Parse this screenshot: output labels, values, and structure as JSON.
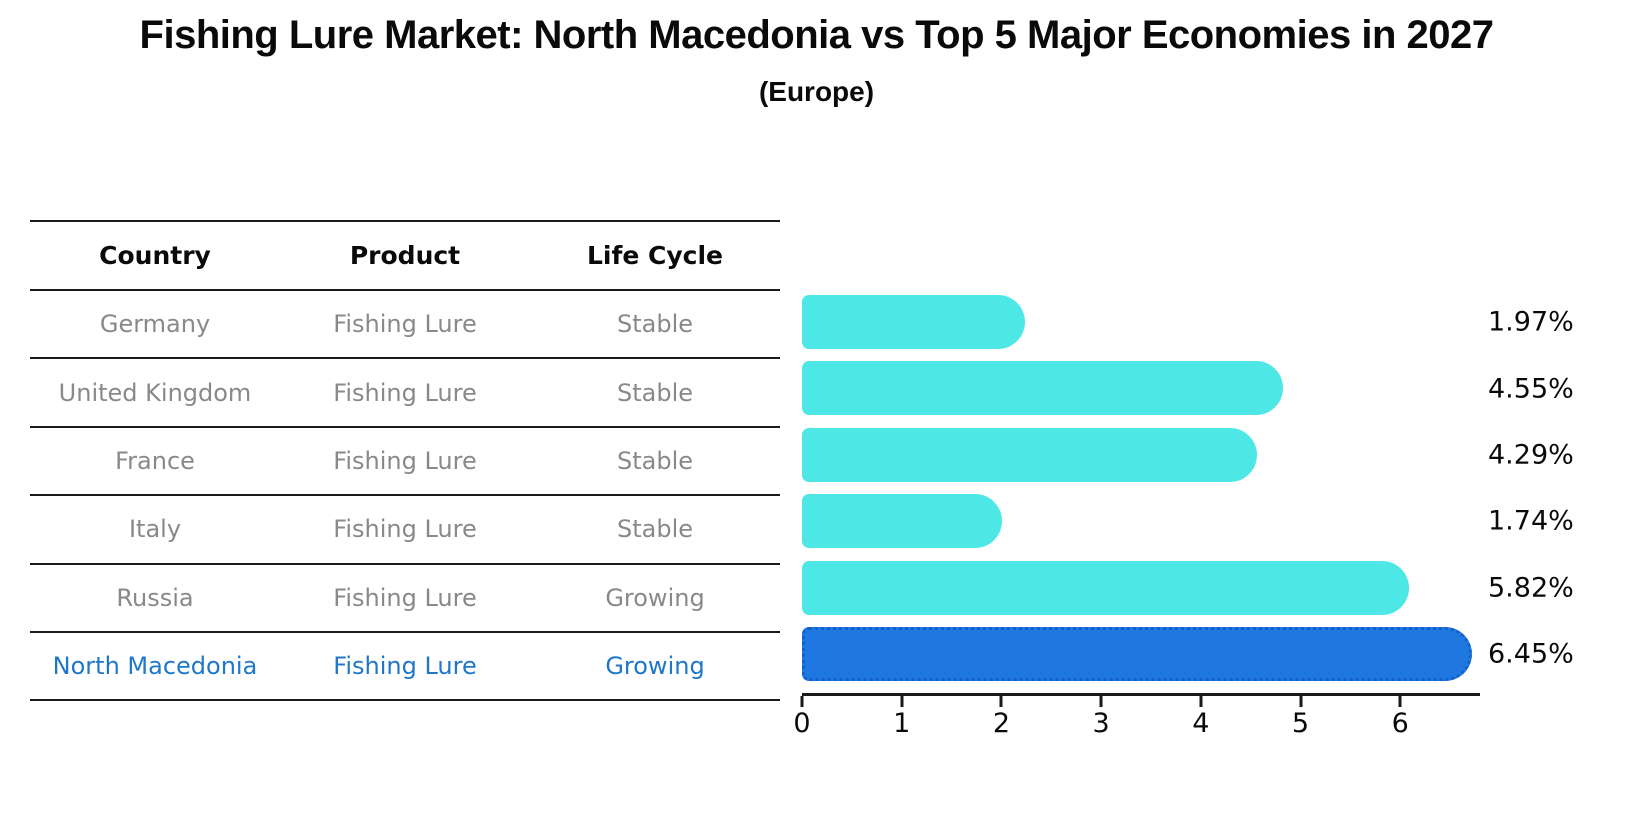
{
  "title": "Fishing Lure Market: North Macedonia vs Top 5 Major Economies in 2027",
  "subtitle": "(Europe)",
  "table": {
    "headers": [
      "Country",
      "Product",
      "Life Cycle"
    ],
    "rows": [
      {
        "country": "Germany",
        "product": "Fishing Lure",
        "life_cycle": "Stable",
        "highlighted": false
      },
      {
        "country": "United Kingdom",
        "product": "Fishing Lure",
        "life_cycle": "Stable",
        "highlighted": false
      },
      {
        "country": "France",
        "product": "Fishing Lure",
        "life_cycle": "Stable",
        "highlighted": false
      },
      {
        "country": "Italy",
        "product": "Fishing Lure",
        "life_cycle": "Stable",
        "highlighted": false
      },
      {
        "country": "Russia",
        "product": "Fishing Lure",
        "life_cycle": "Growing",
        "highlighted": false
      },
      {
        "country": "North Macedonia",
        "product": "Fishing Lure",
        "life_cycle": "Growing",
        "highlighted": true
      }
    ]
  },
  "chart_data": {
    "type": "bar",
    "orientation": "horizontal",
    "title": "Fishing Lure Market: North Macedonia vs Top 5 Major Economies in 2027 (Europe)",
    "categories": [
      "Germany",
      "United Kingdom",
      "France",
      "Italy",
      "Russia",
      "North Macedonia"
    ],
    "values": [
      1.97,
      4.55,
      4.29,
      1.74,
      5.82,
      6.45
    ],
    "value_labels": [
      "1.97%",
      "4.55%",
      "4.29%",
      "1.74%",
      "5.82%",
      "6.45%"
    ],
    "unit": "percent",
    "x_ticks": [
      0,
      1,
      2,
      3,
      4,
      5,
      6
    ],
    "xlim": [
      0,
      6.8
    ],
    "grid": false,
    "legend": false,
    "highlight_index": 5,
    "bar_color": "#4de8e6",
    "highlight_color": "#1e78e0",
    "highlight_border_color": "#1260cc",
    "highlight_text_color": "#1f77c9",
    "row_text_color": "#898989"
  }
}
